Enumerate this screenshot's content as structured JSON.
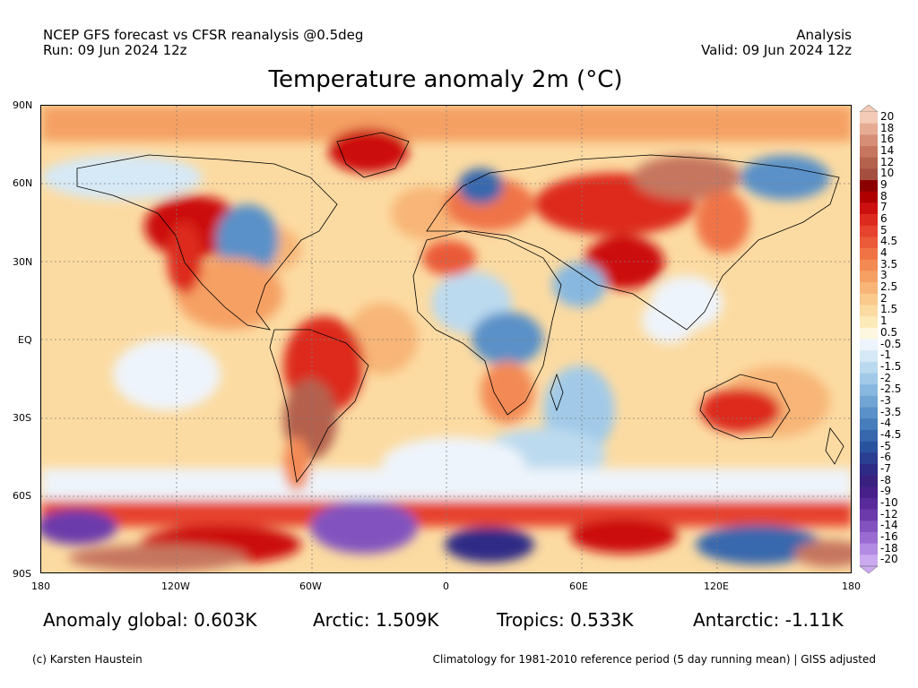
{
  "header": {
    "model_line": "NCEP GFS forecast vs CFSR reanalysis @0.5deg",
    "run_line": "Run: 09 Jun 2024 12z",
    "analysis_label": "Analysis",
    "valid_line": "Valid: 09 Jun 2024 12z"
  },
  "title": "Temperature anomaly 2m (°C)",
  "lat_labels": [
    "90N",
    "60N",
    "30N",
    "EQ",
    "30S",
    "60S",
    "90S"
  ],
  "lon_labels": [
    "180",
    "120W",
    "60W",
    "0",
    "60E",
    "120E",
    "180"
  ],
  "colorbar": {
    "labels": [
      "20",
      "18",
      "16",
      "14",
      "12",
      "10",
      "9",
      "8",
      "7",
      "6",
      "5",
      "4.5",
      "4",
      "3.5",
      "3",
      "2.5",
      "2",
      "1.5",
      "1",
      "0.5",
      "-0.5",
      "-1",
      "-1.5",
      "-2",
      "-2.5",
      "-3",
      "-3.5",
      "-4",
      "-4.5",
      "-5",
      "-6",
      "-7",
      "-8",
      "-9",
      "-10",
      "-12",
      "-14",
      "-16",
      "-18",
      "-20"
    ],
    "colors": [
      "#f3cbb7",
      "#e6ab93",
      "#d68e76",
      "#c6765f",
      "#b4614d",
      "#a44f3f",
      "#8b0000",
      "#b00000",
      "#cc1010",
      "#dd2a1e",
      "#e6422e",
      "#eb5a39",
      "#f07346",
      "#f38a54",
      "#f6a064",
      "#f8b577",
      "#fac98c",
      "#fcdba2",
      "#fdeab9",
      "#fef7e0",
      "#eef4fb",
      "#d6e9f6",
      "#bcdaef",
      "#a2cae8",
      "#88b8df",
      "#70a5d4",
      "#5a91c8",
      "#477dbb",
      "#3768ad",
      "#2a539e",
      "#2a3e92",
      "#2d2b86",
      "#38217f",
      "#47208a",
      "#582a9a",
      "#6c3aab",
      "#8252bf",
      "#9a6cd2",
      "#b48be2",
      "#cbaaef"
    ]
  },
  "stats": {
    "global": "Anomaly global: 0.603K",
    "arctic": "Arctic: 1.509K",
    "tropics": "Tropics: 0.533K",
    "antarctic": "Antarctic: -1.11K"
  },
  "footer": {
    "credit": "(c) Karsten Haustein",
    "climatology": "Climatology for 1981-2010 reference period (5 day running mean) | GISS adjusted"
  }
}
